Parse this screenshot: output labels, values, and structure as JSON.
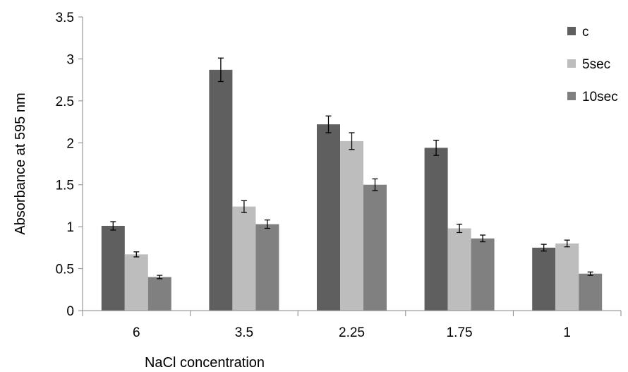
{
  "chart_data": {
    "type": "bar",
    "title": "",
    "xlabel": "NaCl  concentration",
    "ylabel": "Absorbance at 595 nm",
    "categories": [
      "6",
      "3.5",
      "2.25",
      "1.75",
      "1"
    ],
    "ylim": [
      0,
      3.5
    ],
    "yticks": [
      "0",
      "0.5",
      "1",
      "1.5",
      "2",
      "2.5",
      "3",
      "3.5"
    ],
    "grid": false,
    "legend_position": "top-right",
    "series": [
      {
        "name": "c",
        "color": "#5f5f5f",
        "values": [
          1.01,
          2.87,
          2.22,
          1.94,
          0.75
        ],
        "errors": [
          0.05,
          0.14,
          0.1,
          0.09,
          0.04
        ]
      },
      {
        "name": "5sec",
        "color": "#bdbdbd",
        "values": [
          0.67,
          1.24,
          2.02,
          0.98,
          0.8
        ],
        "errors": [
          0.03,
          0.07,
          0.1,
          0.05,
          0.04
        ]
      },
      {
        "name": "10sec",
        "color": "#808080",
        "values": [
          0.4,
          1.03,
          1.5,
          0.86,
          0.44
        ],
        "errors": [
          0.02,
          0.05,
          0.07,
          0.04,
          0.02
        ]
      }
    ]
  }
}
